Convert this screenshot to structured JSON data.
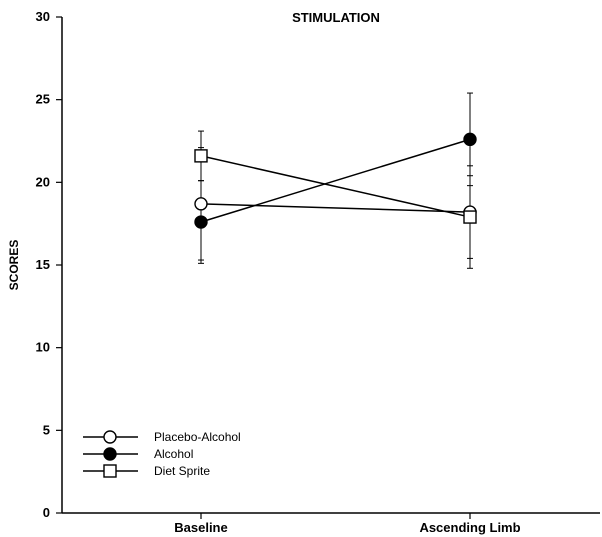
{
  "chart_data": {
    "type": "line",
    "title": "STIMULATION",
    "xlabel": "",
    "ylabel": "SCORES",
    "categories": [
      "Baseline",
      "Ascending  Limb"
    ],
    "ylim": [
      0,
      30
    ],
    "yticks": [
      0,
      5,
      10,
      15,
      20,
      25,
      30
    ],
    "grid": false,
    "legend_position": "bottom-left",
    "series": [
      {
        "name": "Placebo-Alcohol",
        "marker": "open-circle",
        "values": [
          18.7,
          18.2
        ],
        "error": [
          [
            15.3,
            22.1
          ],
          [
            15.4,
            21.0
          ]
        ]
      },
      {
        "name": "Alcohol",
        "marker": "filled-circle",
        "values": [
          17.6,
          22.6
        ],
        "error": [
          [
            15.1,
            20.1
          ],
          [
            19.8,
            25.4
          ]
        ]
      },
      {
        "name": "Diet Sprite",
        "marker": "open-square",
        "values": [
          21.6,
          17.9
        ],
        "error": [
          [
            20.1,
            23.1
          ],
          [
            14.8,
            20.4
          ]
        ]
      }
    ]
  }
}
